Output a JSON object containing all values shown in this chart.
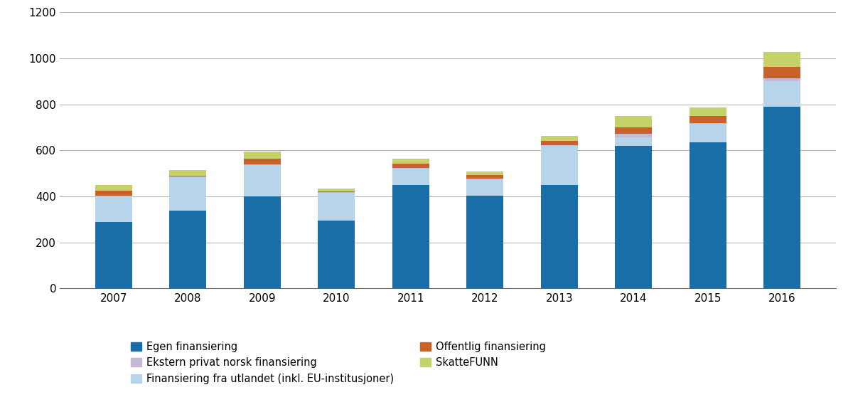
{
  "years": [
    2007,
    2008,
    2009,
    2010,
    2011,
    2012,
    2013,
    2014,
    2015,
    2016
  ],
  "series": {
    "Egen finansiering": [
      290,
      338,
      400,
      295,
      450,
      403,
      450,
      620,
      635,
      790
    ],
    "Finansiering fra utlandet (inkl. EU-institusjoner)": [
      110,
      145,
      135,
      120,
      70,
      72,
      170,
      38,
      80,
      110
    ],
    "Ekstern privat norsk finansiering": [
      3,
      3,
      5,
      3,
      3,
      3,
      3,
      15,
      3,
      15
    ],
    "Offentlig finansiering": [
      22,
      5,
      25,
      5,
      18,
      15,
      18,
      28,
      32,
      48
    ],
    "SkatteFUNN": [
      25,
      22,
      30,
      12,
      22,
      15,
      22,
      48,
      38,
      65
    ]
  },
  "colors": {
    "Egen finansiering": "#1a6ea8",
    "Finansiering fra utlandet (inkl. EU-institusjoner)": "#b8d4ea",
    "Ekstern privat norsk finansiering": "#c5b8d5",
    "Offentlig finansiering": "#c8622a",
    "SkatteFUNN": "#c5d26a"
  },
  "ylim": [
    0,
    1200
  ],
  "yticks": [
    0,
    200,
    400,
    600,
    800,
    1000,
    1200
  ],
  "background_color": "#ffffff",
  "grid_color": "#b0b0b0"
}
